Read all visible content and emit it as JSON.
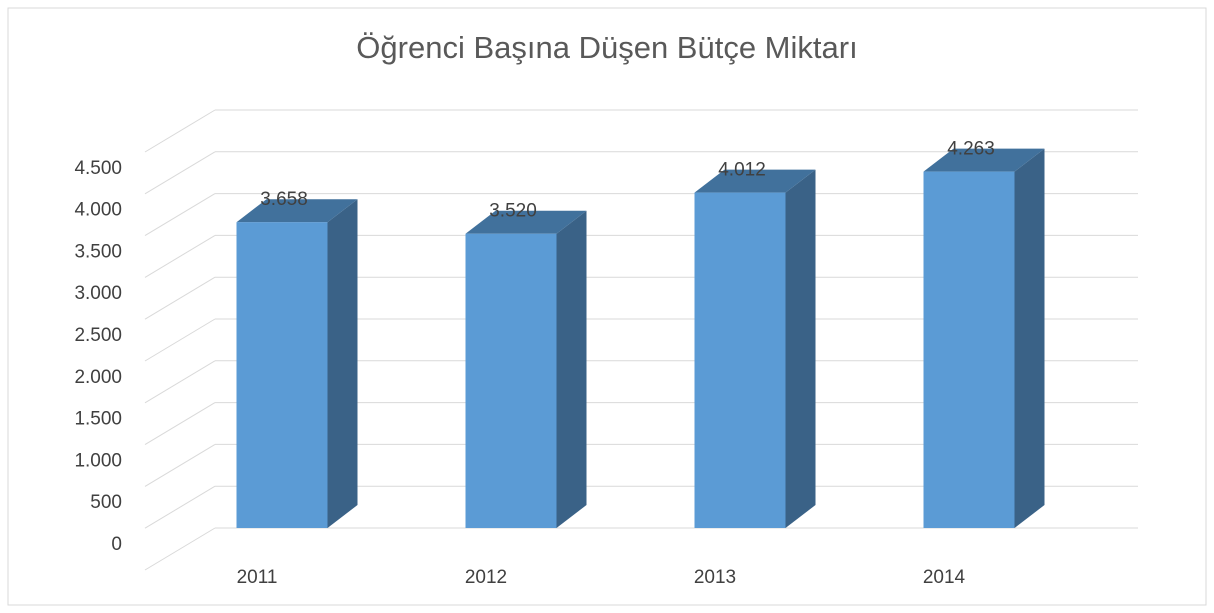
{
  "chart_data": {
    "type": "bar3d",
    "title": "Öğrenci Başına Düşen Bütçe Miktarı",
    "categories": [
      "2011",
      "2012",
      "2013",
      "2014"
    ],
    "values": [
      3658,
      3520,
      4012,
      4263
    ],
    "value_labels": [
      "3.658",
      "3.520",
      "4.012",
      "4.263"
    ],
    "color": "#5b9bd5",
    "ylim": [
      0,
      5000
    ],
    "yticks": [
      0,
      500,
      {
        "value": 1000,
        "label": "1.000"
      },
      {
        "value": 1500,
        "label": "1.500"
      },
      {
        "value": 2000,
        "label": "2.000"
      },
      {
        "value": 2500,
        "label": "2.500"
      },
      {
        "value": 3000,
        "label": "3.000"
      },
      {
        "value": 3500,
        "label": "3.500"
      },
      {
        "value": 4000,
        "label": "4.000"
      },
      {
        "value": 4500,
        "label": "4.500"
      }
    ],
    "grid": true
  }
}
